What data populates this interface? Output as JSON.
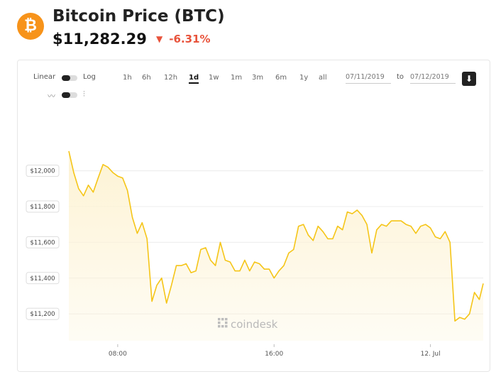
{
  "header": {
    "logo_symbol": "₿",
    "title": "Bitcoin Price",
    "symbol": "(BTC)",
    "price": "$11,282.29",
    "change": "-6.31%",
    "change_color": "#e8533b",
    "brand_color": "#f7931a"
  },
  "controls": {
    "scale_linear": "Linear",
    "scale_log": "Log",
    "ranges": [
      "1h",
      "6h",
      "12h",
      "1d",
      "1w",
      "1m",
      "3m",
      "6m",
      "1y",
      "all"
    ],
    "active_range": "1d",
    "from_date": "07/11/2019",
    "to_label": "to",
    "to_date": "07/12/2019",
    "chart_style_line_icon": "line-chart-icon",
    "chart_style_candle_icon": "candlestick-icon",
    "download_icon": "download-icon"
  },
  "watermark": "coindesk",
  "chart_data": {
    "type": "area",
    "line_color": "#f5c518",
    "fill_color": "#fdf3d4",
    "ylim": [
      11050,
      12300
    ],
    "ytick_values": [
      11200,
      11400,
      11600,
      11800,
      12000
    ],
    "ytick_labels": [
      "$11,200",
      "$11,400",
      "$11,600",
      "$11,800",
      "$12,000"
    ],
    "xlim": [
      5.5,
      26.7
    ],
    "xtick_values": [
      8,
      16,
      24
    ],
    "xtick_labels": [
      "08:00",
      "16:00",
      "12. Jul"
    ],
    "x_hours": [
      5.5,
      5.75,
      6.0,
      6.25,
      6.5,
      6.75,
      7.0,
      7.25,
      7.5,
      7.75,
      8.0,
      8.25,
      8.5,
      8.75,
      9.0,
      9.25,
      9.5,
      9.75,
      10.0,
      10.25,
      10.5,
      10.75,
      11.0,
      11.25,
      11.5,
      11.75,
      12.0,
      12.25,
      12.5,
      12.75,
      13.0,
      13.25,
      13.5,
      13.75,
      14.0,
      14.25,
      14.5,
      14.75,
      15.0,
      15.25,
      15.5,
      15.75,
      16.0,
      16.25,
      16.5,
      16.75,
      17.0,
      17.25,
      17.5,
      17.75,
      18.0,
      18.25,
      18.5,
      18.75,
      19.0,
      19.25,
      19.5,
      19.75,
      20.0,
      20.25,
      20.5,
      20.75,
      21.0,
      21.25,
      21.5,
      21.75,
      22.0,
      22.25,
      22.5,
      22.75,
      23.0,
      23.25,
      23.5,
      23.75,
      24.0,
      24.25,
      24.5,
      24.75,
      25.0,
      25.25,
      25.5,
      25.75,
      26.0,
      26.25,
      26.5,
      26.7
    ],
    "values": [
      12110,
      11990,
      11900,
      11860,
      11920,
      11880,
      11960,
      12035,
      12020,
      11990,
      11970,
      11960,
      11890,
      11740,
      11650,
      11710,
      11620,
      11270,
      11360,
      11400,
      11260,
      11360,
      11470,
      11470,
      11480,
      11430,
      11440,
      11560,
      11570,
      11500,
      11470,
      11600,
      11500,
      11490,
      11440,
      11440,
      11500,
      11440,
      11490,
      11480,
      11450,
      11450,
      11400,
      11440,
      11470,
      11540,
      11560,
      11690,
      11700,
      11640,
      11610,
      11690,
      11660,
      11620,
      11620,
      11690,
      11670,
      11770,
      11760,
      11780,
      11750,
      11700,
      11540,
      11670,
      11700,
      11690,
      11720,
      11720,
      11720,
      11700,
      11690,
      11650,
      11690,
      11700,
      11680,
      11630,
      11620,
      11660,
      11600,
      11160,
      11180,
      11170,
      11200,
      11320,
      11280,
      11370
    ]
  }
}
